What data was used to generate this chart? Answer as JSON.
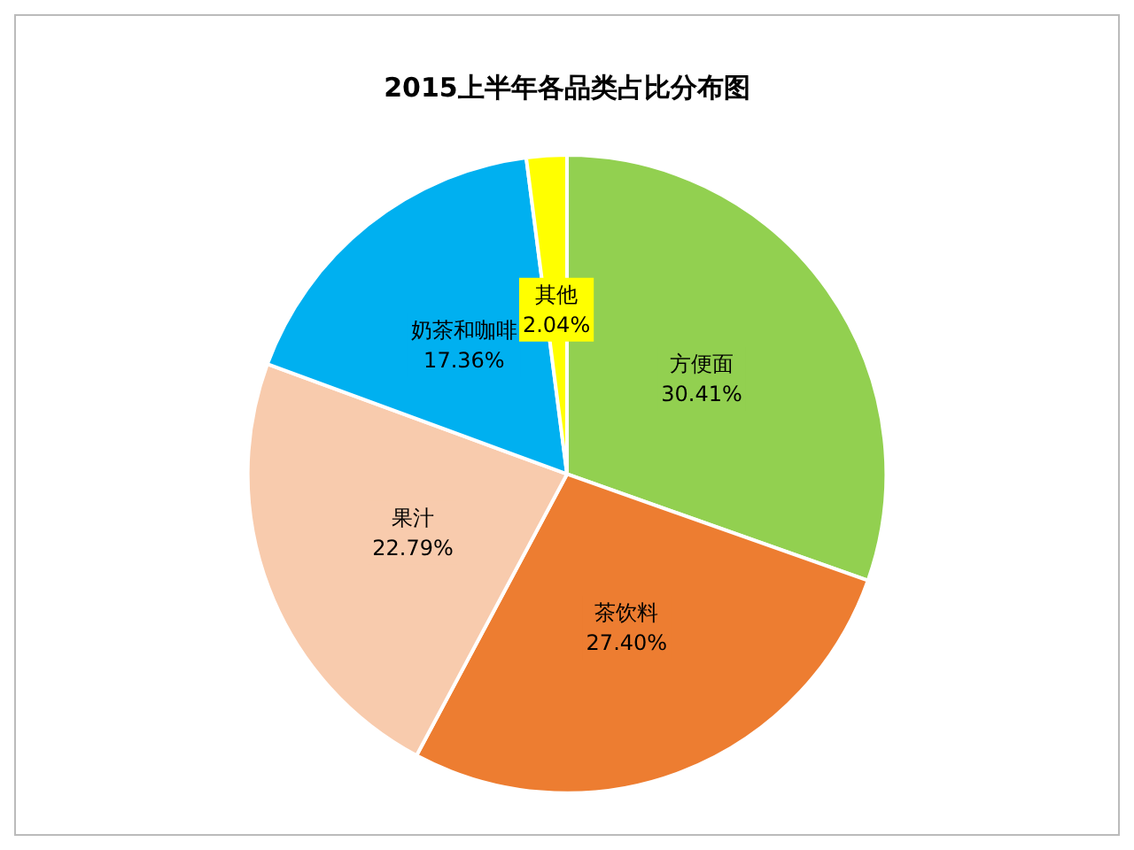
{
  "chart_data": {
    "type": "pie",
    "title": "2015上半年各品类占比分布图",
    "categories": [
      "方便面",
      "茶饮料",
      "果汁",
      "奶茶和咖啡",
      "其他"
    ],
    "values": [
      30.41,
      27.4,
      22.79,
      17.36,
      2.04
    ],
    "value_labels": [
      "30.41%",
      "27.40%",
      "22.79%",
      "17.36%",
      "2.04%"
    ],
    "colors": [
      "#92d050",
      "#ed7d31",
      "#f8cbad",
      "#00b0f0",
      "#ffff00"
    ],
    "legend": false
  }
}
